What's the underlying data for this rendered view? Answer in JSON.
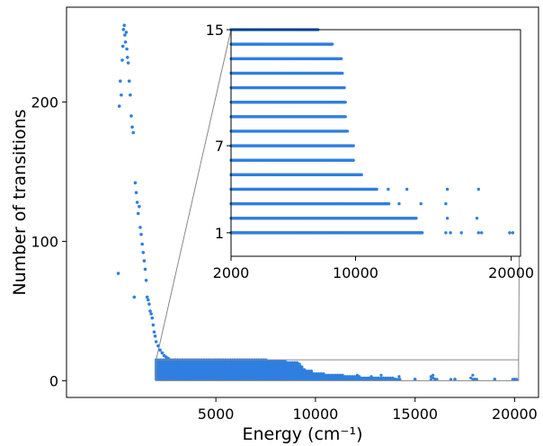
{
  "chart_data": [
    {
      "type": "scatter",
      "xlabel": "Energy (cm⁻¹)",
      "ylabel": "Number of transitions",
      "xlim": [
        -2500,
        21200
      ],
      "ylim": [
        -12,
        268
      ],
      "xticks": [
        5000,
        10000,
        15000,
        20000
      ],
      "xtick_labels": [
        "5000",
        "10000",
        "15000",
        "20000"
      ],
      "yticks": [
        0,
        100,
        200
      ],
      "ytick_labels": [
        "0",
        "100",
        "200"
      ],
      "grid": false,
      "color": "#2f7fe0",
      "zoom_box": {
        "x": [
          2000,
          20200
        ],
        "y": [
          0,
          15
        ]
      },
      "points": [
        [
          100,
          77
        ],
        [
          150,
          197
        ],
        [
          200,
          215
        ],
        [
          250,
          205
        ],
        [
          300,
          230
        ],
        [
          330,
          240
        ],
        [
          360,
          252
        ],
        [
          400,
          255
        ],
        [
          430,
          248
        ],
        [
          460,
          243
        ],
        [
          500,
          250
        ],
        [
          530,
          238
        ],
        [
          560,
          232
        ],
        [
          600,
          228
        ],
        [
          650,
          215
        ],
        [
          700,
          205
        ],
        [
          750,
          190
        ],
        [
          800,
          182
        ],
        [
          850,
          178
        ],
        [
          900,
          60
        ],
        [
          950,
          142
        ],
        [
          1000,
          135
        ],
        [
          1050,
          128
        ],
        [
          1100,
          120
        ],
        [
          1150,
          125
        ],
        [
          1200,
          110
        ],
        [
          1250,
          105
        ],
        [
          1300,
          98
        ],
        [
          1350,
          92
        ],
        [
          1400,
          86
        ],
        [
          1450,
          80
        ],
        [
          1500,
          72
        ],
        [
          1550,
          60
        ],
        [
          1600,
          58
        ],
        [
          1650,
          55
        ],
        [
          1700,
          50
        ],
        [
          1750,
          48
        ],
        [
          1800,
          45
        ],
        [
          1850,
          40
        ],
        [
          1900,
          35
        ],
        [
          1950,
          32
        ],
        [
          2000,
          28
        ],
        [
          2100,
          25
        ],
        [
          2200,
          22
        ],
        [
          2300,
          20
        ],
        [
          2400,
          18
        ],
        [
          2500,
          17
        ],
        [
          2600,
          16
        ],
        [
          2700,
          15
        ],
        [
          2800,
          14
        ],
        [
          3000,
          12
        ],
        [
          3300,
          10
        ],
        [
          3600,
          9
        ],
        [
          4000,
          8
        ],
        [
          4500,
          7
        ],
        [
          5000,
          6
        ],
        [
          5500,
          6
        ],
        [
          6000,
          5
        ],
        [
          7000,
          5
        ],
        [
          8000,
          4
        ],
        [
          9000,
          4
        ],
        [
          10000,
          3
        ],
        [
          11000,
          2
        ],
        [
          12000,
          2
        ],
        [
          13000,
          1
        ],
        [
          14000,
          1
        ],
        [
          15000,
          1
        ],
        [
          16000,
          1
        ],
        [
          17000,
          1
        ],
        [
          18000,
          1
        ],
        [
          19000,
          1
        ],
        [
          20000,
          1
        ]
      ]
    },
    {
      "type": "scatter",
      "xlim": [
        2000,
        20600
      ],
      "ylim": [
        0,
        15
      ],
      "xticks": [
        2000,
        10000,
        20000
      ],
      "xtick_labels": [
        "2000",
        "10000",
        "20000"
      ],
      "yticks": [
        1,
        7,
        15
      ],
      "ytick_labels": [
        "1",
        "7",
        "15"
      ],
      "grid": false,
      "color": "#2f7fe0",
      "levels": [
        {
          "y": 1,
          "ranges": [
            [
              2000,
              14300
            ]
          ],
          "extra": [
            15800,
            16100,
            16800,
            17900,
            18100,
            19900,
            20100
          ]
        },
        {
          "y": 2,
          "ranges": [
            [
              2000,
              13900
            ]
          ],
          "extra": [
            15900,
            17800
          ]
        },
        {
          "y": 3,
          "ranges": [
            [
              2000,
              12200
            ]
          ],
          "extra": [
            12800,
            14200,
            15800
          ]
        },
        {
          "y": 4,
          "ranges": [
            [
              2000,
              11400
            ]
          ],
          "extra": [
            12100,
            13300,
            15900,
            17900
          ]
        },
        {
          "y": 5,
          "ranges": [
            [
              2000,
              10400
            ]
          ],
          "extra": []
        },
        {
          "y": 6,
          "ranges": [
            [
              2000,
              9900
            ]
          ],
          "extra": []
        },
        {
          "y": 7,
          "ranges": [
            [
              2000,
              9900
            ]
          ],
          "extra": []
        },
        {
          "y": 8,
          "ranges": [
            [
              2000,
              9500
            ]
          ],
          "extra": []
        },
        {
          "y": 9,
          "ranges": [
            [
              2000,
              9400
            ]
          ],
          "extra": []
        },
        {
          "y": 10,
          "ranges": [
            [
              2000,
              9400
            ]
          ],
          "extra": []
        },
        {
          "y": 11,
          "ranges": [
            [
              2000,
              9300
            ]
          ],
          "extra": []
        },
        {
          "y": 12,
          "ranges": [
            [
              2000,
              9200
            ]
          ],
          "extra": []
        },
        {
          "y": 13,
          "ranges": [
            [
              2000,
              9100
            ]
          ],
          "extra": []
        },
        {
          "y": 14,
          "ranges": [
            [
              2000,
              8500
            ]
          ],
          "extra": []
        },
        {
          "y": 15,
          "ranges": [
            [
              2000,
              7600
            ]
          ],
          "extra": []
        }
      ]
    }
  ]
}
